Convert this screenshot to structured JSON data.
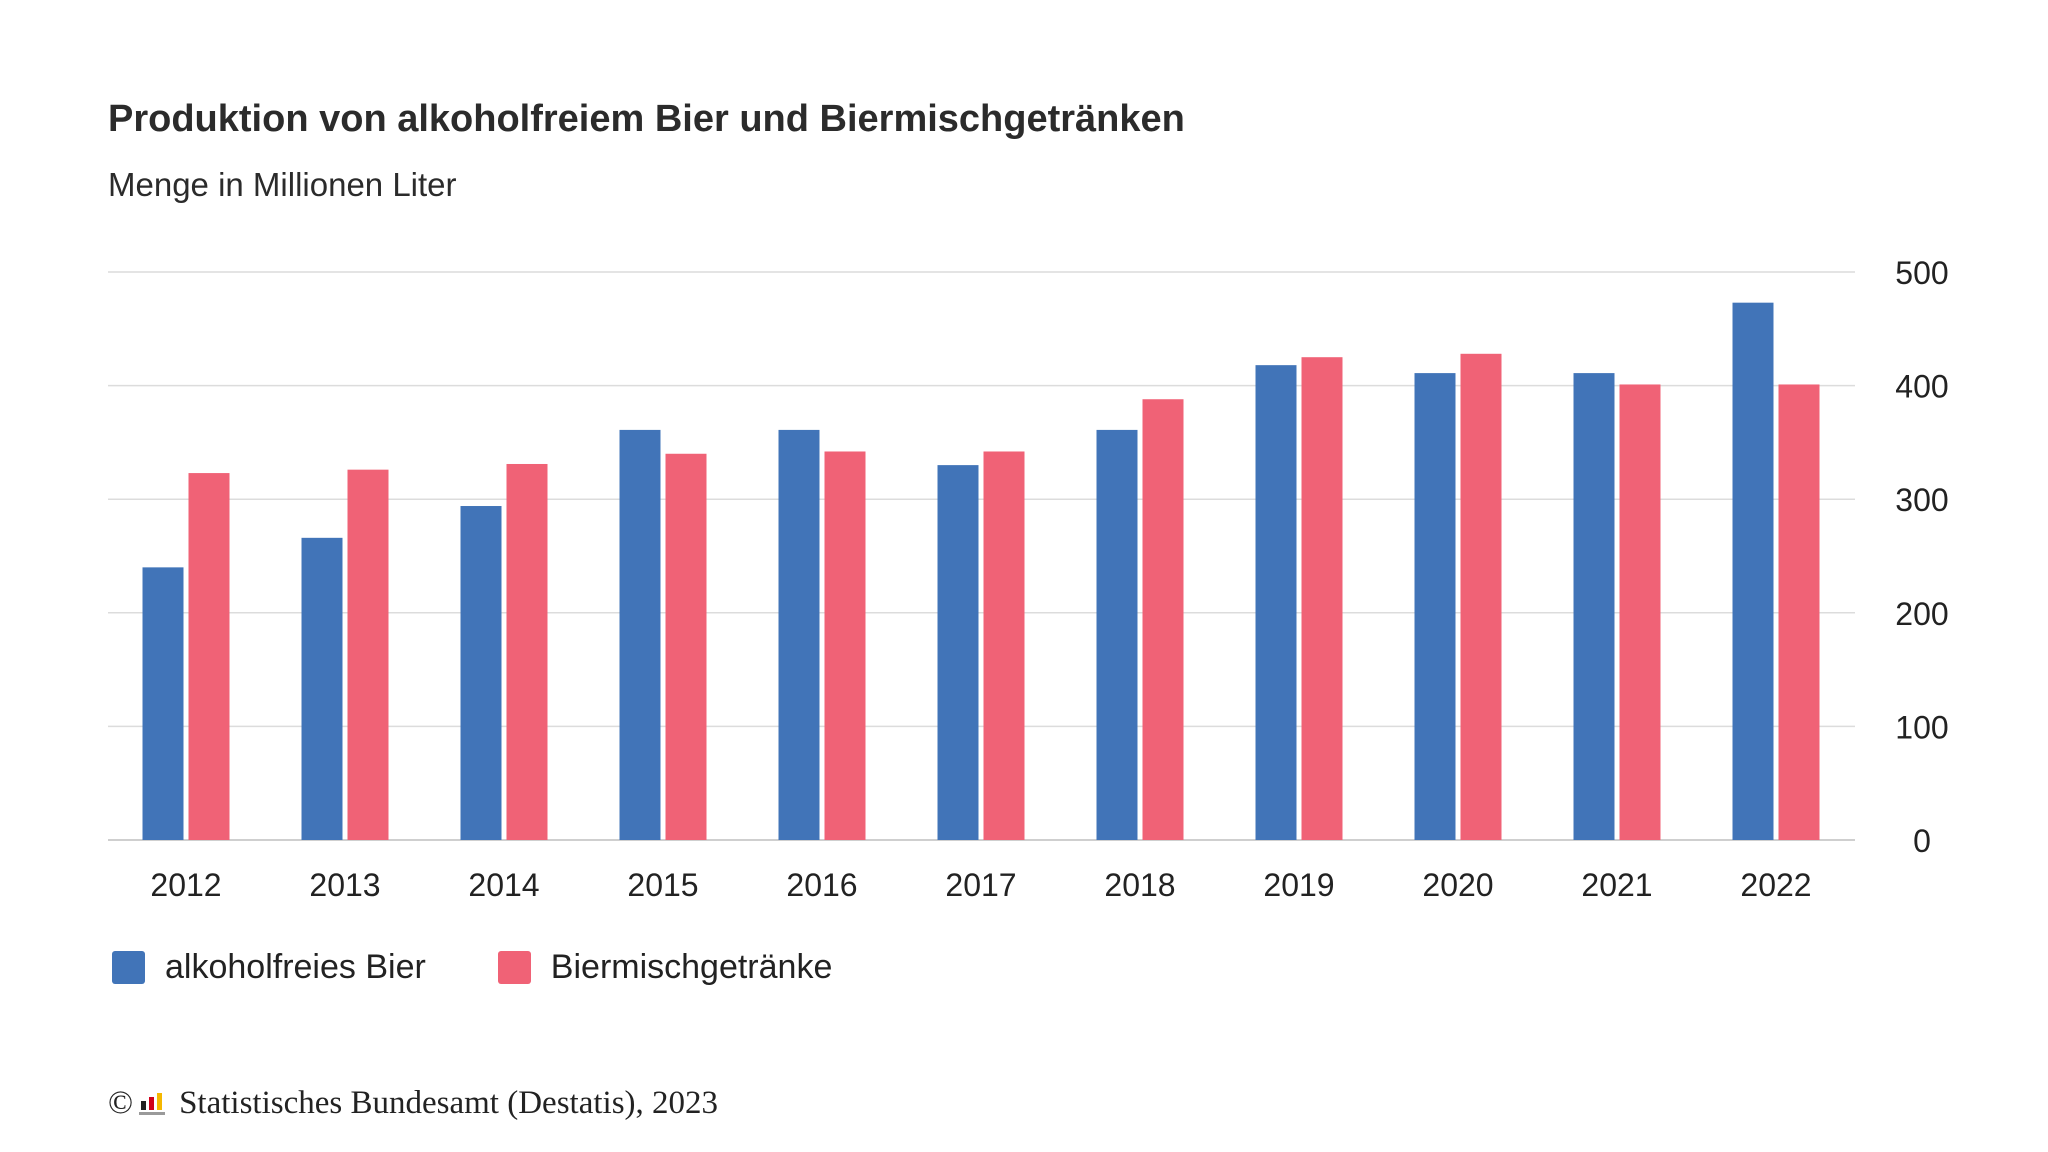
{
  "title": "Produktion von alkoholfreiem Bier und Biermischgetränken",
  "subtitle": "Menge in Millionen Liter",
  "colors": {
    "series1": "#4174b8",
    "series2": "#f06276",
    "grid": "#dcdcdc"
  },
  "footer": {
    "copyright_symbol": "©",
    "logo_icon": "destatis-logo-icon",
    "source": "Statistisches Bundesamt (Destatis), 2023"
  },
  "chart_data": {
    "type": "bar",
    "categories": [
      "2012",
      "2013",
      "2014",
      "2015",
      "2016",
      "2017",
      "2018",
      "2019",
      "2020",
      "2021",
      "2022"
    ],
    "series": [
      {
        "name": "alkoholfreies Bier",
        "values": [
          240,
          266,
          294,
          361,
          361,
          330,
          361,
          418,
          411,
          411,
          473
        ]
      },
      {
        "name": "Biermischgetränke",
        "values": [
          323,
          326,
          331,
          340,
          342,
          342,
          388,
          425,
          428,
          401,
          401
        ]
      }
    ],
    "title": "Produktion von alkoholfreiem Bier und Biermischgetränken",
    "subtitle": "Menge in Millionen Liter",
    "ylim": [
      0,
      500
    ],
    "yticks": [
      0,
      100,
      200,
      300,
      400,
      500
    ],
    "y_axis_position": "right",
    "grid": true,
    "legend": "bottom-left"
  }
}
